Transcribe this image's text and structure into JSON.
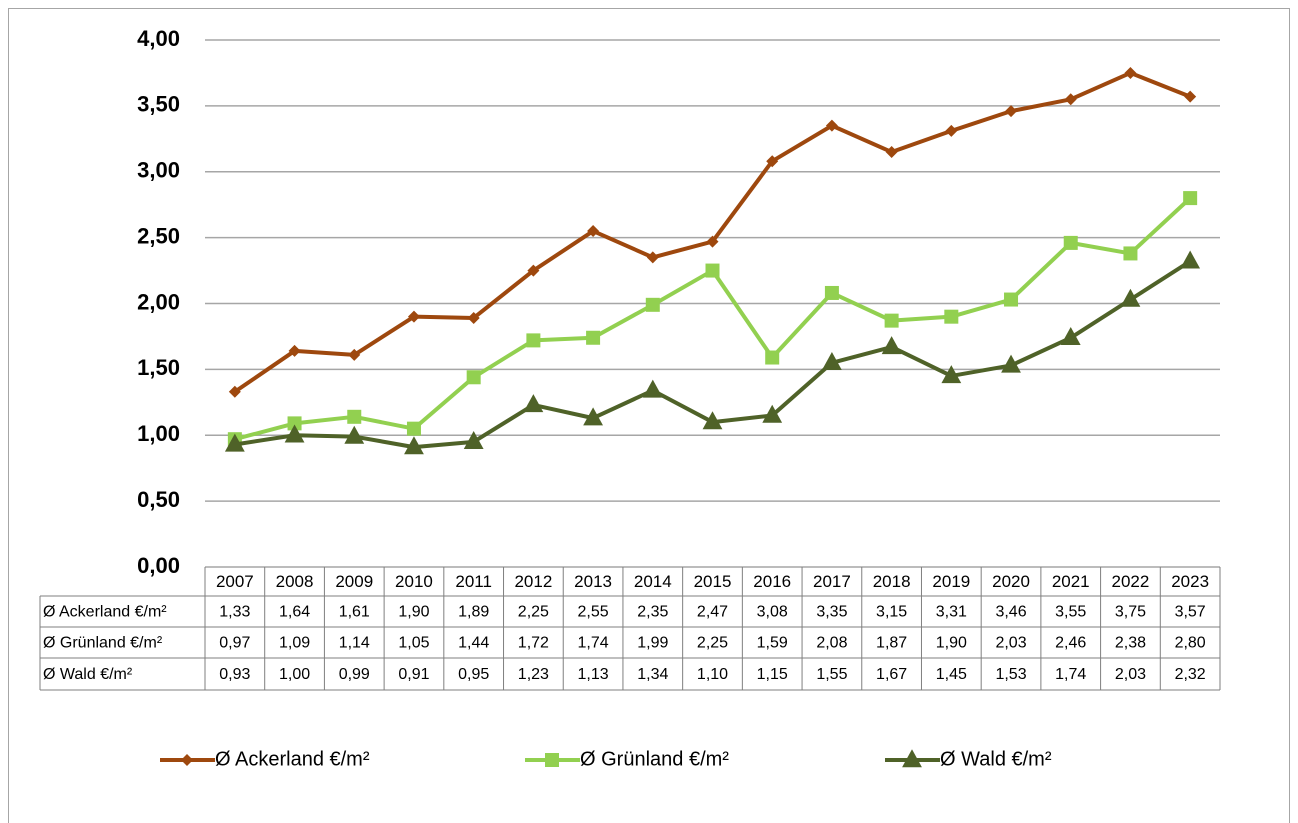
{
  "chart_data": {
    "type": "line",
    "categories": [
      "2007",
      "2008",
      "2009",
      "2010",
      "2011",
      "2012",
      "2013",
      "2014",
      "2015",
      "2016",
      "2017",
      "2018",
      "2019",
      "2020",
      "2021",
      "2022",
      "2023"
    ],
    "series": [
      {
        "name": "Ø Ackerland €/m²",
        "color": "#9e480e",
        "marker": "diamond",
        "values": [
          1.33,
          1.64,
          1.61,
          1.9,
          1.89,
          2.25,
          2.55,
          2.35,
          2.47,
          3.08,
          3.35,
          3.15,
          3.31,
          3.46,
          3.55,
          3.75,
          3.57
        ],
        "value_labels": [
          "1,33",
          "1,64",
          "1,61",
          "1,90",
          "1,89",
          "2,25",
          "2,55",
          "2,35",
          "2,47",
          "3,08",
          "3,35",
          "3,15",
          "3,31",
          "3,46",
          "3,55",
          "3,75",
          "3,57"
        ]
      },
      {
        "name": "Ø Grünland €/m²",
        "color": "#92d050",
        "marker": "square",
        "values": [
          0.97,
          1.09,
          1.14,
          1.05,
          1.44,
          1.72,
          1.74,
          1.99,
          2.25,
          1.59,
          2.08,
          1.87,
          1.9,
          2.03,
          2.46,
          2.38,
          2.8
        ],
        "value_labels": [
          "0,97",
          "1,09",
          "1,14",
          "1,05",
          "1,44",
          "1,72",
          "1,74",
          "1,99",
          "2,25",
          "1,59",
          "2,08",
          "1,87",
          "1,90",
          "2,03",
          "2,46",
          "2,38",
          "2,80"
        ]
      },
      {
        "name": "Ø Wald €/m²",
        "color": "#4f6228",
        "marker": "triangle",
        "values": [
          0.93,
          1.0,
          0.99,
          0.91,
          0.95,
          1.23,
          1.13,
          1.34,
          1.1,
          1.15,
          1.55,
          1.67,
          1.45,
          1.53,
          1.74,
          2.03,
          2.32
        ],
        "value_labels": [
          "0,93",
          "1,00",
          "0,99",
          "0,91",
          "0,95",
          "1,23",
          "1,13",
          "1,34",
          "1,10",
          "1,15",
          "1,55",
          "1,67",
          "1,45",
          "1,53",
          "1,74",
          "2,03",
          "2,32"
        ]
      }
    ],
    "ylim": [
      0,
      4
    ],
    "yticks": [
      {
        "value": 0,
        "label": "0,00"
      },
      {
        "value": 0.5,
        "label": "0,50"
      },
      {
        "value": 1,
        "label": "1,00"
      },
      {
        "value": 1.5,
        "label": "1,50"
      },
      {
        "value": 2,
        "label": "2,00"
      },
      {
        "value": 2.5,
        "label": "2,50"
      },
      {
        "value": 3,
        "label": "3,00"
      },
      {
        "value": 3.5,
        "label": "3,50"
      },
      {
        "value": 4,
        "label": "4,00"
      }
    ],
    "grid": true,
    "legend": "bottom"
  }
}
